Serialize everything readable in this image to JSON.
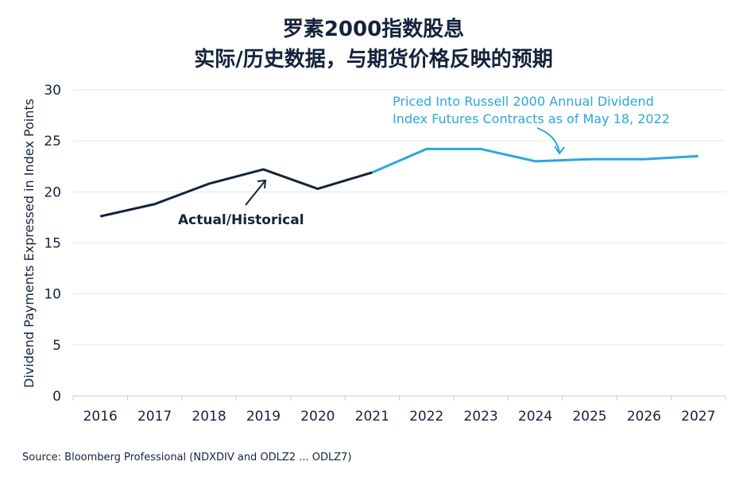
{
  "chart_data": {
    "type": "line",
    "title": "罗素2000指数股息",
    "subtitle": "实际/历史数据，与期货价格反映的预期",
    "ylabel": "Dividend Payments Expressed in Index Points",
    "xlabel": "",
    "ylim": [
      0,
      30
    ],
    "yticks": [
      0,
      5,
      10,
      15,
      20,
      25,
      30
    ],
    "x": [
      2016,
      2017,
      2018,
      2019,
      2020,
      2021,
      2022,
      2023,
      2024,
      2025,
      2026,
      2027
    ],
    "series": [
      {
        "name": "Actual/Historical",
        "color": "#14233c",
        "x": [
          2016,
          2017,
          2018,
          2019,
          2020,
          2021
        ],
        "values": [
          17.6,
          18.8,
          20.8,
          22.2,
          20.3,
          21.9
        ]
      },
      {
        "name": "Priced Into Russell 2000 Annual Dividend Index Futures Contracts as of May 18, 2022",
        "color": "#2aa7de",
        "x": [
          2021,
          2022,
          2023,
          2024,
          2025,
          2026,
          2027
        ],
        "values": [
          21.9,
          24.2,
          24.2,
          23.0,
          23.2,
          23.2,
          23.5
        ]
      }
    ],
    "annotations": {
      "historical_label": "Actual/Historical",
      "futures_label_line1": "Priced Into Russell 2000 Annual Dividend",
      "futures_label_line2": "Index Futures Contracts as of May 18, 2022"
    },
    "grid": "horizontal",
    "source": "Source: Bloomberg Professional (NDXDIV and ODLZ2 ... ODLZ7)"
  }
}
